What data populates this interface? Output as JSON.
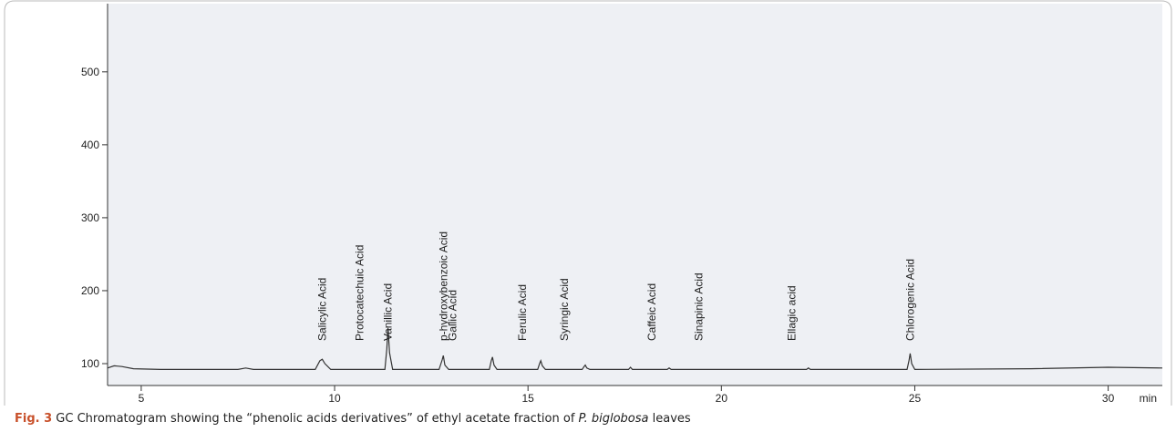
{
  "chart_data": {
    "type": "line",
    "x": [
      4.13,
      4.3,
      4.5,
      4.8,
      5.5,
      7.5,
      7.7,
      7.9,
      9.5,
      9.62,
      9.68,
      9.75,
      9.9,
      11.3,
      11.35,
      11.38,
      11.42,
      11.5,
      12.7,
      12.78,
      12.81,
      12.85,
      12.95,
      14.0,
      14.05,
      14.08,
      14.12,
      14.2,
      15.25,
      15.3,
      15.33,
      15.37,
      15.45,
      16.4,
      16.45,
      16.48,
      16.52,
      16.6,
      17.6,
      17.65,
      17.7,
      18.6,
      18.65,
      18.7,
      22.2,
      22.25,
      22.3,
      24.8,
      24.85,
      24.88,
      24.92,
      25.0,
      28,
      30,
      31.4
    ],
    "values": [
      94,
      97,
      96,
      93,
      92,
      92,
      94,
      92,
      92,
      104,
      106,
      100,
      92,
      92,
      120,
      149,
      115,
      92,
      92,
      105,
      111,
      98,
      92,
      92,
      104,
      109,
      98,
      92,
      92,
      100,
      104,
      97,
      92,
      92,
      96,
      98,
      94,
      92,
      92,
      95,
      92,
      92,
      94,
      92,
      92,
      94,
      92,
      92,
      104,
      114,
      100,
      92,
      93,
      95,
      94
    ],
    "color": "#333333",
    "xlim": [
      4.13,
      31.4
    ],
    "xticks": [
      5,
      10,
      15,
      20,
      25,
      30
    ],
    "xlabel": "min",
    "ylim": [
      70,
      571
    ],
    "yticks": [
      100,
      200,
      300,
      400,
      500
    ],
    "annotations": [
      {
        "text": "Salicylic Acid",
        "x": 9.68
      },
      {
        "text": "Protocatechuic Acid",
        "x": 10.65
      },
      {
        "text": "Vanillic Acid",
        "x": 11.38
      },
      {
        "text": "p-hydroxybenzoic Acid",
        "x": 12.81
      },
      {
        "text": "Gallic Acid",
        "x": 13.05
      },
      {
        "text": "Ferulic Acid",
        "x": 14.86
      },
      {
        "text": "Syringic Acid",
        "x": 15.94
      },
      {
        "text": "Caffeic Acid",
        "x": 18.2
      },
      {
        "text": "Sinapinic Acid",
        "x": 19.42
      },
      {
        "text": "Ellagic acid",
        "x": 21.82
      },
      {
        "text": "Chlorogenic Acid",
        "x": 24.88
      }
    ]
  },
  "caption": {
    "label": "Fig. 3",
    "text": "GC Chromatogram showing the “phenolic acids derivatives” of ethyl acetate fraction of",
    "species": "P. biglobosa",
    "end": "leaves"
  }
}
